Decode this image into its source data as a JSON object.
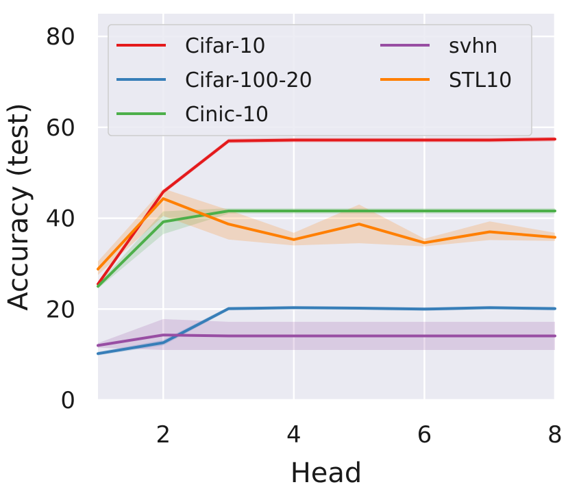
{
  "chart_data": {
    "type": "line",
    "xlabel": "Head",
    "ylabel": "Accuracy (test)",
    "xlim": [
      1,
      8
    ],
    "ylim": [
      0,
      85
    ],
    "xticks": [
      2,
      4,
      6,
      8
    ],
    "yticks": [
      0,
      20,
      40,
      60,
      80
    ],
    "grid": true,
    "legend_position": "top",
    "legend_columns": 2,
    "x": [
      1,
      2,
      3,
      4,
      5,
      6,
      7,
      8
    ],
    "series": [
      {
        "name": "Cifar-10",
        "color": "#e41a1c",
        "values": [
          25.5,
          45.8,
          57.0,
          57.2,
          57.2,
          57.2,
          57.2,
          57.4
        ],
        "lower": [
          25.0,
          45.3,
          56.5,
          56.7,
          56.7,
          56.7,
          56.7,
          56.9
        ],
        "upper": [
          26.0,
          46.3,
          57.5,
          57.7,
          57.7,
          57.7,
          57.7,
          57.9
        ]
      },
      {
        "name": "Cifar-100-20",
        "color": "#377eb8",
        "values": [
          10.2,
          12.6,
          20.1,
          20.3,
          20.2,
          20.0,
          20.3,
          20.1
        ],
        "lower": [
          9.8,
          12.0,
          19.7,
          19.9,
          19.8,
          19.6,
          19.9,
          19.7
        ],
        "upper": [
          10.6,
          13.2,
          20.5,
          20.7,
          20.6,
          20.4,
          20.7,
          20.5
        ]
      },
      {
        "name": "Cinic-10",
        "color": "#4daf4a",
        "values": [
          25.0,
          39.2,
          41.6,
          41.6,
          41.6,
          41.6,
          41.6,
          41.6
        ],
        "lower": [
          24.5,
          36.5,
          41.0,
          41.0,
          41.0,
          41.0,
          41.0,
          41.0
        ],
        "upper": [
          25.5,
          41.5,
          42.2,
          42.2,
          42.2,
          42.2,
          42.2,
          42.2
        ]
      },
      {
        "name": "svhn",
        "color": "#984ea3",
        "values": [
          12.0,
          14.3,
          14.1,
          14.1,
          14.1,
          14.1,
          14.1,
          14.1
        ],
        "lower": [
          11.5,
          11.0,
          11.0,
          11.0,
          11.0,
          11.0,
          11.0,
          11.0
        ],
        "upper": [
          12.5,
          17.8,
          17.2,
          17.2,
          17.2,
          17.2,
          17.2,
          17.2
        ]
      },
      {
        "name": "STL10",
        "color": "#ff7f00",
        "values": [
          28.8,
          44.3,
          38.7,
          35.3,
          38.7,
          34.6,
          37.0,
          35.8
        ],
        "lower": [
          27.5,
          40.5,
          35.3,
          34.0,
          34.5,
          33.8,
          35.2,
          35.0
        ],
        "upper": [
          30.5,
          46.5,
          41.8,
          36.8,
          43.0,
          35.5,
          39.3,
          36.8
        ]
      }
    ]
  }
}
